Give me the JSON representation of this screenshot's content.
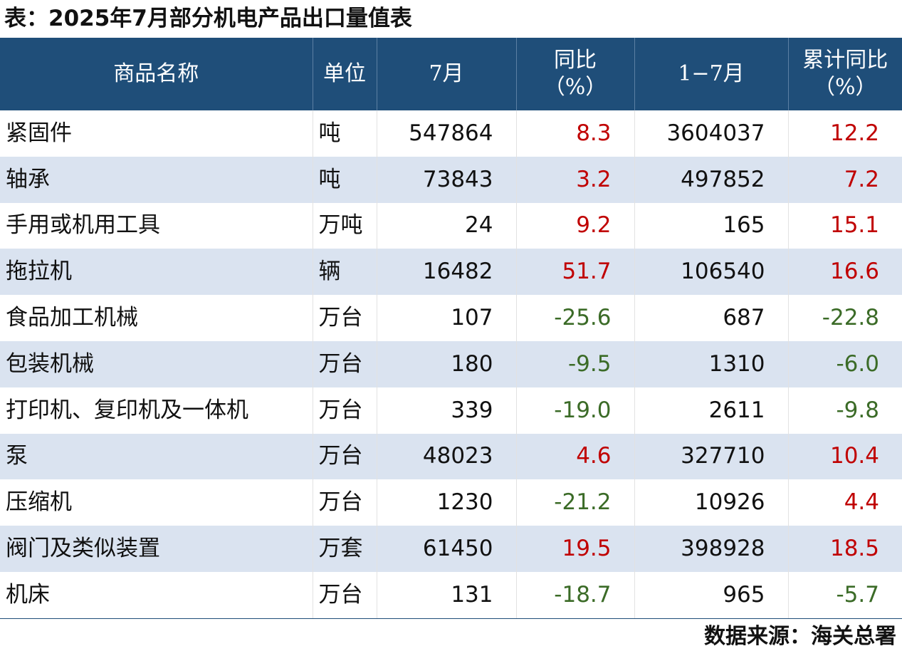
{
  "title": "表：2025年7月部分机电产品出口量值表",
  "headers": {
    "name": "商品名称",
    "unit": "单位",
    "month": "7月",
    "yoy_line1": "同比",
    "yoy_line2": "（%）",
    "ytd": "1−7月",
    "ytd_yoy_line1": "累计同比",
    "ytd_yoy_line2": "（%）"
  },
  "rows": [
    {
      "name": "紧固件",
      "unit": "吨",
      "month": "547864",
      "yoy": "8.3",
      "ytd": "3604037",
      "ytd_yoy": "12.2"
    },
    {
      "name": "轴承",
      "unit": "吨",
      "month": "73843",
      "yoy": "3.2",
      "ytd": "497852",
      "ytd_yoy": "7.2"
    },
    {
      "name": "手用或机用工具",
      "unit": "万吨",
      "month": "24",
      "yoy": "9.2",
      "ytd": "165",
      "ytd_yoy": "15.1"
    },
    {
      "name": "拖拉机",
      "unit": "辆",
      "month": "16482",
      "yoy": "51.7",
      "ytd": "106540",
      "ytd_yoy": "16.6"
    },
    {
      "name": "食品加工机械",
      "unit": "万台",
      "month": "107",
      "yoy": "-25.6",
      "ytd": "687",
      "ytd_yoy": "-22.8"
    },
    {
      "name": "包装机械",
      "unit": "万台",
      "month": "180",
      "yoy": "-9.5",
      "ytd": "1310",
      "ytd_yoy": "-6.0"
    },
    {
      "name": "打印机、复印机及一体机",
      "unit": "万台",
      "month": "339",
      "yoy": "-19.0",
      "ytd": "2611",
      "ytd_yoy": "-9.8"
    },
    {
      "name": "泵",
      "unit": "万台",
      "month": "48023",
      "yoy": "4.6",
      "ytd": "327710",
      "ytd_yoy": "10.4"
    },
    {
      "name": "压缩机",
      "unit": "万台",
      "month": "1230",
      "yoy": "-21.2",
      "ytd": "10926",
      "ytd_yoy": "4.4"
    },
    {
      "name": "阀门及类似装置",
      "unit": "万套",
      "month": "61450",
      "yoy": "19.5",
      "ytd": "398928",
      "ytd_yoy": "18.5"
    },
    {
      "name": "机床",
      "unit": "万台",
      "month": "131",
      "yoy": "-18.7",
      "ytd": "965",
      "ytd_yoy": "-5.7"
    }
  ],
  "source": "数据来源：海关总署",
  "colors": {
    "header_bg": "#1f4e79",
    "alt_row_bg": "#dae3f0",
    "positive": "#c00000",
    "negative": "#3b6b27"
  }
}
